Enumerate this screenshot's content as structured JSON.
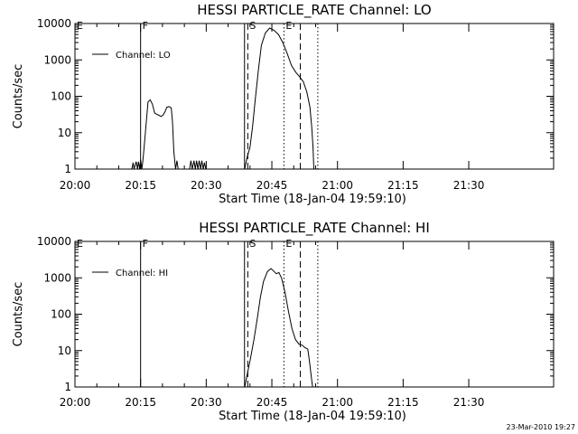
{
  "chart_data": [
    {
      "type": "line",
      "title": "HESSI PARTICLE_RATE Channel: LO",
      "xlabel": "Start Time (18-Jan-04 19:59:10)",
      "ylabel": "Counts/sec",
      "y_scale": "log",
      "ylim": [
        1,
        10000
      ],
      "x_range_min": [
        0,
        53
      ],
      "xticks": [
        "20:00",
        "20:15",
        "20:30",
        "20:45",
        "21:00",
        "21:15",
        "21:30"
      ],
      "yticks": [
        "1",
        "10",
        "100",
        "1000",
        "10000"
      ],
      "legend": {
        "position": "top-left",
        "label": "Channel: LO"
      },
      "grid": false,
      "markers": [
        {
          "label": "E",
          "t": 0.0,
          "style": "none"
        },
        {
          "label": "F",
          "t": 15.0,
          "style": "solid"
        },
        {
          "label": "",
          "t": 38.75,
          "style": "solid"
        },
        {
          "label": "S",
          "t": 39.5,
          "style": "dashed"
        },
        {
          "label": "E",
          "t": 47.75,
          "style": "dotted"
        },
        {
          "label": "",
          "t": 51.5,
          "style": "dashed"
        },
        {
          "label": "",
          "t": 55.5,
          "style": "dotted"
        }
      ],
      "series": [
        {
          "name": "Channel: LO",
          "segments": [
            [
              [
                13.0,
                1
              ],
              [
                13.3,
                1.5
              ],
              [
                13.5,
                1
              ],
              [
                14.0,
                1.6
              ],
              [
                14.3,
                1
              ],
              [
                14.5,
                1.6
              ],
              [
                14.8,
                1
              ],
              [
                15.0,
                1.8
              ],
              [
                15.3,
                1
              ],
              [
                15.5,
                1.6
              ],
              [
                15.8,
                4
              ],
              [
                16.3,
                20
              ],
              [
                16.7,
                70
              ],
              [
                17.2,
                80
              ],
              [
                17.7,
                60
              ],
              [
                18.2,
                35
              ],
              [
                18.7,
                32
              ],
              [
                19.2,
                30
              ],
              [
                19.7,
                28
              ],
              [
                20.1,
                30
              ],
              [
                20.6,
                38
              ],
              [
                21.0,
                50
              ],
              [
                21.5,
                52
              ],
              [
                22.0,
                48
              ],
              [
                22.3,
                20
              ],
              [
                22.6,
                3
              ],
              [
                23.0,
                1
              ],
              [
                23.3,
                1.7
              ],
              [
                23.6,
                1
              ],
              [
                26.2,
                1
              ],
              [
                26.5,
                1.7
              ],
              [
                26.8,
                1
              ],
              [
                27.2,
                1.7
              ],
              [
                27.5,
                1
              ],
              [
                27.8,
                1.7
              ],
              [
                28.1,
                1
              ],
              [
                28.4,
                1.7
              ],
              [
                28.7,
                1
              ],
              [
                29.0,
                1.7
              ],
              [
                29.3,
                1
              ],
              [
                29.6,
                1.5
              ],
              [
                29.9,
                1
              ]
            ],
            [
              [
                38.8,
                1
              ],
              [
                39.3,
                2
              ],
              [
                40.0,
                4
              ],
              [
                40.6,
                15
              ],
              [
                41.2,
                80
              ],
              [
                41.9,
                500
              ],
              [
                42.6,
                2500
              ],
              [
                43.5,
                5500
              ],
              [
                44.5,
                7500
              ],
              [
                45.5,
                6500
              ],
              [
                46.5,
                5000
              ],
              [
                47.5,
                3000
              ],
              [
                48.5,
                1500
              ],
              [
                49.5,
                700
              ],
              [
                50.5,
                450
              ],
              [
                51.3,
                350
              ],
              [
                52.2,
                250
              ],
              [
                53.0,
                130
              ],
              [
                53.7,
                50
              ],
              [
                54.1,
                15
              ],
              [
                54.4,
                4
              ],
              [
                54.6,
                1
              ]
            ]
          ]
        }
      ]
    },
    {
      "type": "line",
      "title": "HESSI PARTICLE_RATE Channel: HI",
      "xlabel": "Start Time (18-Jan-04 19:59:10)",
      "ylabel": "Counts/sec",
      "y_scale": "log",
      "ylim": [
        1,
        10000
      ],
      "x_range_min": [
        0,
        53
      ],
      "xticks": [
        "20:00",
        "20:15",
        "20:30",
        "20:45",
        "21:00",
        "21:15",
        "21:30"
      ],
      "yticks": [
        "1",
        "10",
        "100",
        "1000",
        "10000"
      ],
      "legend": {
        "position": "top-left",
        "label": "Channel: HI"
      },
      "grid": false,
      "markers": [
        {
          "label": "E",
          "t": 0.0,
          "style": "none"
        },
        {
          "label": "F",
          "t": 15.0,
          "style": "solid"
        },
        {
          "label": "",
          "t": 38.75,
          "style": "solid"
        },
        {
          "label": "S",
          "t": 39.5,
          "style": "dashed"
        },
        {
          "label": "E",
          "t": 47.75,
          "style": "dotted"
        },
        {
          "label": "",
          "t": 51.5,
          "style": "dashed"
        },
        {
          "label": "",
          "t": 55.5,
          "style": "dotted"
        }
      ],
      "series": [
        {
          "name": "Channel: HI",
          "segments": [
            [
              [
                38.8,
                1
              ],
              [
                39.3,
                2
              ],
              [
                40.1,
                6
              ],
              [
                40.9,
                20
              ],
              [
                41.7,
                80
              ],
              [
                42.4,
                300
              ],
              [
                43.1,
                800
              ],
              [
                44.0,
                1500
              ],
              [
                44.8,
                1800
              ],
              [
                45.5,
                1500
              ],
              [
                46.0,
                1300
              ],
              [
                46.6,
                1400
              ],
              [
                47.2,
                1000
              ],
              [
                48.0,
                400
              ],
              [
                48.8,
                120
              ],
              [
                49.6,
                40
              ],
              [
                50.4,
                20
              ],
              [
                51.2,
                15
              ],
              [
                52.0,
                14
              ],
              [
                52.6,
                12
              ],
              [
                53.2,
                11
              ],
              [
                53.6,
                5
              ],
              [
                54.0,
                2
              ],
              [
                54.3,
                1
              ]
            ]
          ]
        }
      ]
    }
  ],
  "timestamp": "23-Mar-2010 19:27"
}
